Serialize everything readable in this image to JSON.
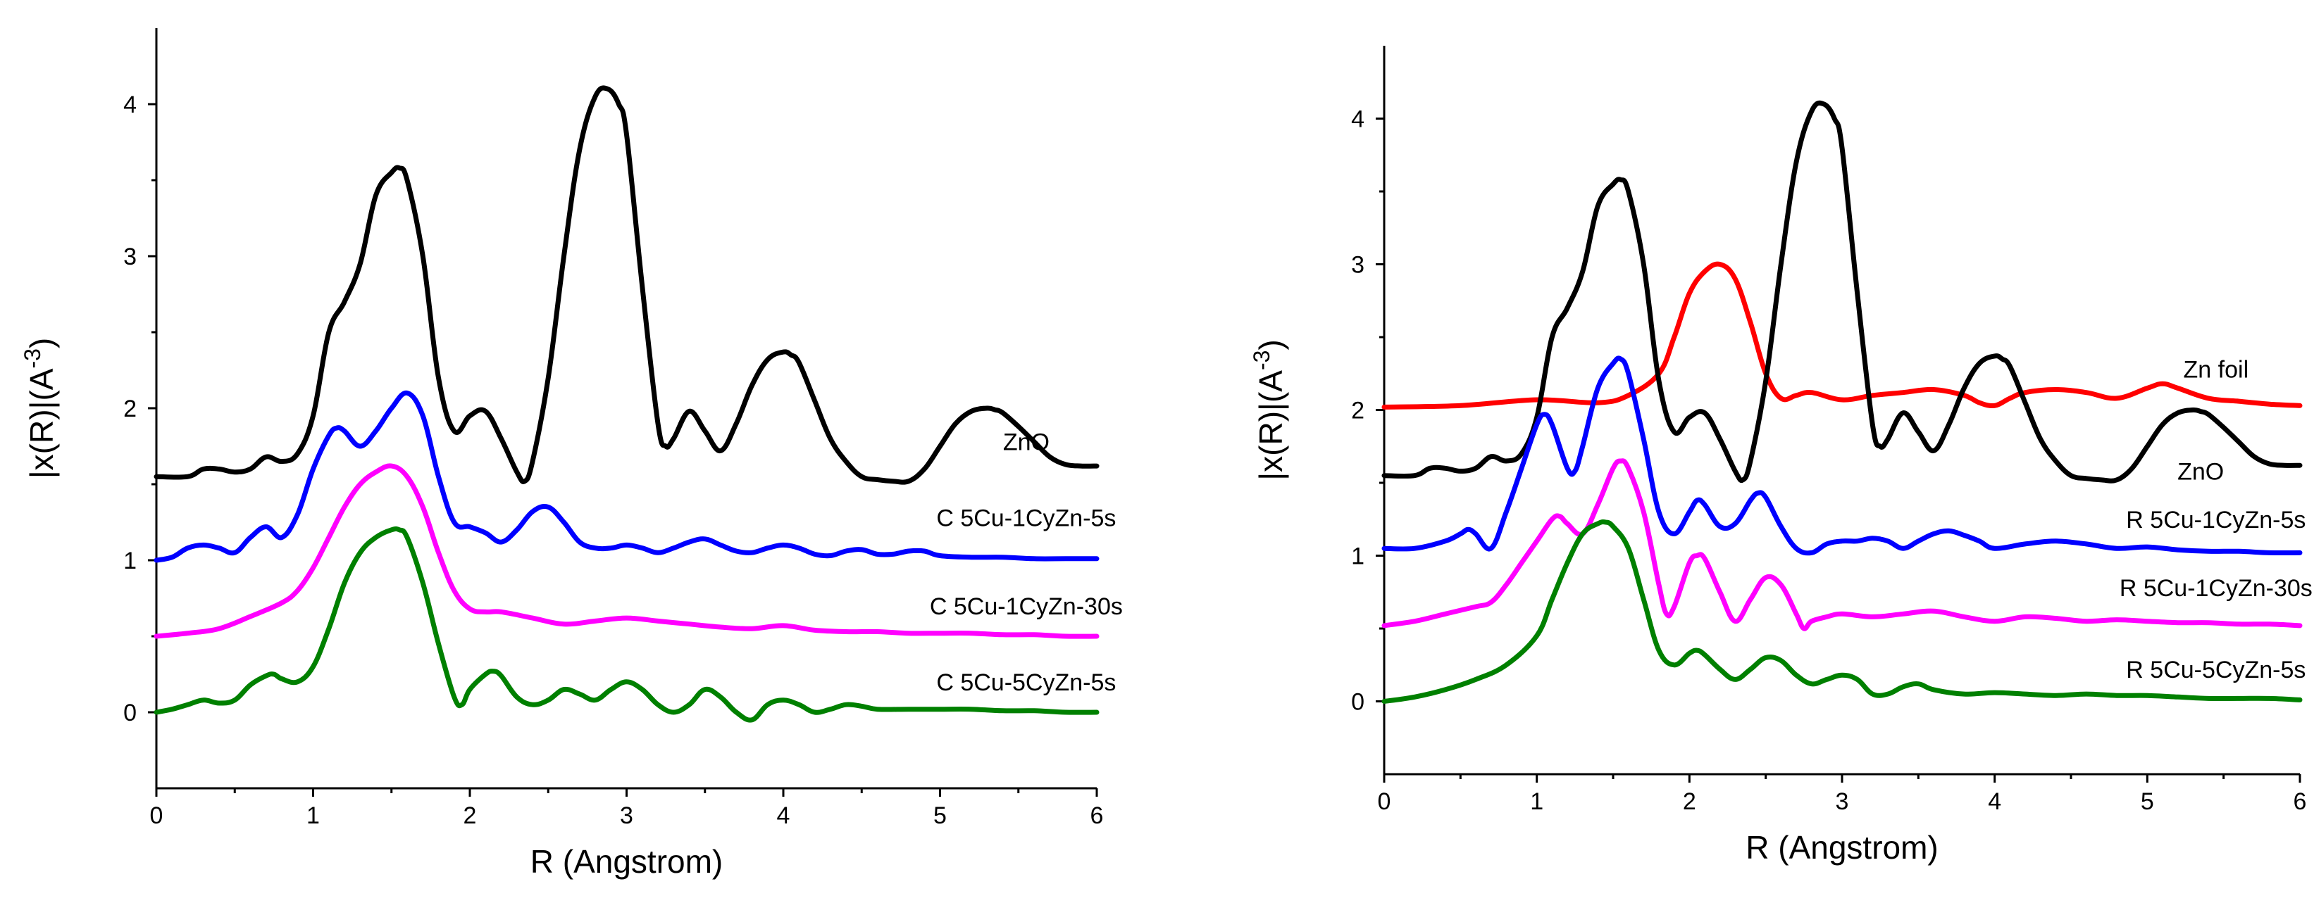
{
  "chart_data": [
    {
      "type": "line",
      "title": "",
      "xlabel": "R (Angstrom)",
      "ylabel": "|x(R)|(A^-3)",
      "ylabel_parts": {
        "main": "|x(R)|(A",
        "sup": "-3",
        "close": ")"
      },
      "xlim": [
        0,
        6
      ],
      "ylim": [
        -0.5,
        4.5
      ],
      "xticks": [
        "0",
        "1",
        "2",
        "3",
        "4",
        "5",
        "6"
      ],
      "yticks": [
        "0",
        "1",
        "2",
        "3",
        "4"
      ],
      "series": [
        {
          "name": "ZnO",
          "color": "#000000",
          "x": [
            0,
            0.2,
            0.3,
            0.4,
            0.5,
            0.6,
            0.7,
            0.8,
            0.9,
            1.0,
            1.1,
            1.2,
            1.3,
            1.4,
            1.5,
            1.55,
            1.6,
            1.7,
            1.8,
            1.9,
            2.0,
            2.1,
            2.2,
            2.3,
            2.35,
            2.4,
            2.5,
            2.6,
            2.7,
            2.8,
            2.88,
            2.95,
            3.0,
            3.1,
            3.2,
            3.25,
            3.3,
            3.4,
            3.5,
            3.6,
            3.7,
            3.8,
            3.9,
            4.0,
            4.05,
            4.1,
            4.2,
            4.3,
            4.4,
            4.5,
            4.6,
            4.7,
            4.8,
            4.9,
            5.0,
            5.1,
            5.2,
            5.3,
            5.35,
            5.4,
            5.5,
            5.6,
            5.7,
            5.8,
            5.9,
            6.0
          ],
          "y": [
            1.55,
            1.55,
            1.6,
            1.6,
            1.58,
            1.6,
            1.68,
            1.65,
            1.7,
            1.95,
            2.5,
            2.7,
            2.95,
            3.4,
            3.55,
            3.58,
            3.5,
            3.0,
            2.2,
            1.85,
            1.95,
            1.98,
            1.8,
            1.58,
            1.52,
            1.65,
            2.2,
            3.0,
            3.7,
            4.05,
            4.1,
            4.0,
            3.8,
            2.8,
            1.9,
            1.75,
            1.8,
            1.98,
            1.85,
            1.72,
            1.9,
            2.15,
            2.32,
            2.37,
            2.35,
            2.3,
            2.05,
            1.8,
            1.65,
            1.55,
            1.53,
            1.52,
            1.52,
            1.6,
            1.75,
            1.9,
            1.98,
            2.0,
            1.99,
            1.97,
            1.88,
            1.78,
            1.68,
            1.63,
            1.62,
            1.62
          ],
          "label_pos": [
            5.55,
            1.78
          ]
        },
        {
          "name": "C 5Cu-1CyZn-5s",
          "color": "#0000ff",
          "x": [
            0,
            0.1,
            0.2,
            0.3,
            0.4,
            0.5,
            0.6,
            0.7,
            0.8,
            0.9,
            1.0,
            1.1,
            1.15,
            1.2,
            1.3,
            1.4,
            1.5,
            1.6,
            1.7,
            1.8,
            1.9,
            2.0,
            2.1,
            2.2,
            2.3,
            2.4,
            2.5,
            2.6,
            2.7,
            2.8,
            2.9,
            3.0,
            3.1,
            3.2,
            3.3,
            3.4,
            3.5,
            3.6,
            3.7,
            3.8,
            3.9,
            4.0,
            4.1,
            4.2,
            4.3,
            4.4,
            4.5,
            4.6,
            4.7,
            4.8,
            4.9,
            5.0,
            5.2,
            5.4,
            5.6,
            5.8,
            6.0
          ],
          "y": [
            1.0,
            1.02,
            1.08,
            1.1,
            1.08,
            1.05,
            1.15,
            1.22,
            1.15,
            1.3,
            1.6,
            1.82,
            1.87,
            1.85,
            1.75,
            1.85,
            2.0,
            2.1,
            1.95,
            1.55,
            1.25,
            1.22,
            1.18,
            1.12,
            1.2,
            1.32,
            1.35,
            1.25,
            1.12,
            1.08,
            1.08,
            1.1,
            1.08,
            1.05,
            1.08,
            1.12,
            1.14,
            1.1,
            1.06,
            1.05,
            1.08,
            1.1,
            1.08,
            1.04,
            1.03,
            1.06,
            1.07,
            1.04,
            1.04,
            1.06,
            1.06,
            1.03,
            1.02,
            1.02,
            1.01,
            1.01,
            1.01
          ],
          "label_pos": [
            5.55,
            1.28
          ]
        },
        {
          "name": "C 5Cu-1CyZn-30s",
          "color": "#ff00ff",
          "x": [
            0,
            0.2,
            0.4,
            0.6,
            0.8,
            0.9,
            1.0,
            1.1,
            1.2,
            1.3,
            1.4,
            1.5,
            1.6,
            1.7,
            1.8,
            1.9,
            2.0,
            2.1,
            2.2,
            2.4,
            2.6,
            2.8,
            3.0,
            3.2,
            3.4,
            3.6,
            3.8,
            4.0,
            4.2,
            4.4,
            4.6,
            4.8,
            5.0,
            5.2,
            5.4,
            5.6,
            5.8,
            6.0
          ],
          "y": [
            0.5,
            0.52,
            0.55,
            0.63,
            0.72,
            0.8,
            0.95,
            1.15,
            1.35,
            1.5,
            1.58,
            1.62,
            1.55,
            1.35,
            1.05,
            0.8,
            0.68,
            0.66,
            0.66,
            0.62,
            0.58,
            0.6,
            0.62,
            0.6,
            0.58,
            0.56,
            0.55,
            0.57,
            0.54,
            0.53,
            0.53,
            0.52,
            0.52,
            0.52,
            0.51,
            0.51,
            0.5,
            0.5
          ],
          "label_pos": [
            5.55,
            0.7
          ]
        },
        {
          "name": "C 5Cu-5CyZn-5s",
          "color": "#008000",
          "x": [
            0,
            0.1,
            0.2,
            0.3,
            0.4,
            0.5,
            0.6,
            0.7,
            0.75,
            0.8,
            0.9,
            1.0,
            1.1,
            1.2,
            1.3,
            1.4,
            1.5,
            1.55,
            1.6,
            1.7,
            1.8,
            1.9,
            1.95,
            2.0,
            2.1,
            2.15,
            2.2,
            2.3,
            2.4,
            2.5,
            2.6,
            2.7,
            2.8,
            2.9,
            3.0,
            3.1,
            3.2,
            3.3,
            3.4,
            3.5,
            3.6,
            3.7,
            3.8,
            3.9,
            4.0,
            4.1,
            4.2,
            4.3,
            4.4,
            4.5,
            4.6,
            4.8,
            5.0,
            5.2,
            5.4,
            5.6,
            5.8,
            6.0
          ],
          "y": [
            0.0,
            0.02,
            0.05,
            0.08,
            0.06,
            0.08,
            0.18,
            0.24,
            0.25,
            0.22,
            0.2,
            0.3,
            0.55,
            0.85,
            1.05,
            1.15,
            1.2,
            1.2,
            1.15,
            0.85,
            0.45,
            0.1,
            0.05,
            0.15,
            0.25,
            0.27,
            0.24,
            0.1,
            0.05,
            0.08,
            0.15,
            0.12,
            0.08,
            0.15,
            0.2,
            0.15,
            0.05,
            0.0,
            0.05,
            0.15,
            0.1,
            0.0,
            -0.05,
            0.05,
            0.08,
            0.05,
            0.0,
            0.02,
            0.05,
            0.04,
            0.02,
            0.02,
            0.02,
            0.02,
            0.01,
            0.01,
            0.0,
            0.0
          ],
          "label_pos": [
            5.55,
            0.2
          ]
        }
      ]
    },
    {
      "type": "line",
      "title": "",
      "xlabel": "R (Angstrom)",
      "ylabel": "|x(R)|(A^-3)",
      "ylabel_parts": {
        "main": "|x(R)|(A",
        "sup": "-3",
        "close": ")"
      },
      "xlim": [
        0,
        6
      ],
      "ylim": [
        -0.5,
        4.5
      ],
      "xticks": [
        "0",
        "1",
        "2",
        "3",
        "4",
        "5",
        "6"
      ],
      "yticks": [
        "0",
        "1",
        "2",
        "3",
        "4"
      ],
      "series": [
        {
          "name": "Zn foil",
          "color": "#ff0000",
          "x": [
            0,
            0.5,
            1.0,
            1.4,
            1.6,
            1.8,
            1.9,
            2.0,
            2.1,
            2.2,
            2.3,
            2.4,
            2.5,
            2.6,
            2.7,
            2.8,
            3.0,
            3.2,
            3.4,
            3.6,
            3.8,
            3.9,
            4.0,
            4.1,
            4.2,
            4.4,
            4.6,
            4.8,
            5.0,
            5.1,
            5.2,
            5.4,
            5.6,
            5.8,
            6.0
          ],
          "y": [
            2.02,
            2.03,
            2.07,
            2.05,
            2.1,
            2.25,
            2.5,
            2.8,
            2.95,
            3.0,
            2.9,
            2.6,
            2.25,
            2.08,
            2.1,
            2.12,
            2.07,
            2.1,
            2.12,
            2.14,
            2.1,
            2.05,
            2.03,
            2.08,
            2.12,
            2.14,
            2.12,
            2.08,
            2.15,
            2.18,
            2.15,
            2.08,
            2.06,
            2.04,
            2.03
          ],
          "label_pos": [
            5.45,
            2.28
          ]
        },
        {
          "name": "ZnO",
          "color": "#000000",
          "x": [
            0,
            0.2,
            0.3,
            0.4,
            0.5,
            0.6,
            0.7,
            0.8,
            0.9,
            1.0,
            1.1,
            1.2,
            1.3,
            1.4,
            1.5,
            1.55,
            1.6,
            1.7,
            1.8,
            1.9,
            2.0,
            2.1,
            2.2,
            2.3,
            2.35,
            2.4,
            2.5,
            2.6,
            2.7,
            2.8,
            2.88,
            2.95,
            3.0,
            3.1,
            3.2,
            3.25,
            3.3,
            3.4,
            3.5,
            3.6,
            3.7,
            3.8,
            3.9,
            4.0,
            4.05,
            4.1,
            4.2,
            4.3,
            4.4,
            4.5,
            4.6,
            4.7,
            4.8,
            4.9,
            5.0,
            5.1,
            5.2,
            5.3,
            5.35,
            5.4,
            5.5,
            5.6,
            5.7,
            5.8,
            5.9,
            6.0
          ],
          "y": [
            1.55,
            1.55,
            1.6,
            1.6,
            1.58,
            1.6,
            1.68,
            1.65,
            1.7,
            1.95,
            2.5,
            2.7,
            2.95,
            3.4,
            3.55,
            3.58,
            3.5,
            3.0,
            2.2,
            1.85,
            1.95,
            1.98,
            1.8,
            1.58,
            1.52,
            1.65,
            2.2,
            3.0,
            3.7,
            4.05,
            4.1,
            4.0,
            3.8,
            2.8,
            1.9,
            1.75,
            1.8,
            1.98,
            1.85,
            1.72,
            1.9,
            2.15,
            2.32,
            2.37,
            2.35,
            2.3,
            2.05,
            1.8,
            1.65,
            1.55,
            1.53,
            1.52,
            1.52,
            1.6,
            1.75,
            1.9,
            1.98,
            2.0,
            1.99,
            1.97,
            1.88,
            1.78,
            1.68,
            1.63,
            1.62,
            1.62
          ],
          "label_pos": [
            5.35,
            1.58
          ]
        },
        {
          "name": "R 5Cu-1CyZn-5s",
          "color": "#0000ff",
          "x": [
            0,
            0.2,
            0.4,
            0.5,
            0.55,
            0.6,
            0.7,
            0.8,
            0.9,
            1.0,
            1.05,
            1.1,
            1.2,
            1.25,
            1.3,
            1.4,
            1.5,
            1.55,
            1.6,
            1.7,
            1.8,
            1.9,
            2.0,
            2.05,
            2.1,
            2.2,
            2.3,
            2.4,
            2.45,
            2.5,
            2.6,
            2.7,
            2.8,
            2.9,
            3.0,
            3.1,
            3.2,
            3.3,
            3.4,
            3.5,
            3.6,
            3.7,
            3.8,
            3.9,
            4.0,
            4.2,
            4.4,
            4.6,
            4.8,
            5.0,
            5.2,
            5.4,
            5.6,
            5.8,
            6.0
          ],
          "y": [
            1.05,
            1.05,
            1.1,
            1.15,
            1.18,
            1.15,
            1.05,
            1.3,
            1.6,
            1.9,
            1.97,
            1.9,
            1.6,
            1.58,
            1.75,
            2.15,
            2.32,
            2.35,
            2.25,
            1.8,
            1.3,
            1.15,
            1.3,
            1.38,
            1.35,
            1.2,
            1.22,
            1.38,
            1.43,
            1.4,
            1.2,
            1.05,
            1.02,
            1.08,
            1.1,
            1.1,
            1.12,
            1.1,
            1.05,
            1.1,
            1.15,
            1.17,
            1.14,
            1.1,
            1.05,
            1.08,
            1.1,
            1.08,
            1.05,
            1.06,
            1.04,
            1.03,
            1.03,
            1.02,
            1.02
          ],
          "label_pos": [
            5.45,
            1.25
          ]
        },
        {
          "name": "R 5Cu-1CyZn-30s",
          "color": "#ff00ff",
          "x": [
            0,
            0.2,
            0.4,
            0.6,
            0.7,
            0.8,
            0.9,
            1.0,
            1.1,
            1.15,
            1.2,
            1.3,
            1.4,
            1.5,
            1.55,
            1.6,
            1.7,
            1.8,
            1.85,
            1.9,
            2.0,
            2.05,
            2.1,
            2.2,
            2.3,
            2.4,
            2.5,
            2.6,
            2.7,
            2.75,
            2.8,
            2.9,
            3.0,
            3.2,
            3.4,
            3.6,
            3.8,
            4.0,
            4.2,
            4.4,
            4.6,
            4.8,
            5.0,
            5.2,
            5.4,
            5.6,
            5.8,
            6.0
          ],
          "y": [
            0.52,
            0.55,
            0.6,
            0.65,
            0.68,
            0.8,
            0.95,
            1.1,
            1.25,
            1.27,
            1.22,
            1.15,
            1.35,
            1.6,
            1.65,
            1.6,
            1.3,
            0.8,
            0.6,
            0.65,
            0.95,
            1.0,
            0.98,
            0.75,
            0.55,
            0.7,
            0.85,
            0.8,
            0.6,
            0.5,
            0.55,
            0.58,
            0.6,
            0.58,
            0.6,
            0.62,
            0.58,
            0.55,
            0.58,
            0.57,
            0.55,
            0.56,
            0.55,
            0.54,
            0.54,
            0.53,
            0.53,
            0.52
          ],
          "label_pos": [
            5.45,
            0.78
          ]
        },
        {
          "name": "R 5Cu-5CyZn-5s",
          "color": "#008000",
          "x": [
            0,
            0.2,
            0.4,
            0.6,
            0.8,
            1.0,
            1.1,
            1.2,
            1.3,
            1.4,
            1.45,
            1.5,
            1.6,
            1.7,
            1.8,
            1.9,
            2.0,
            2.05,
            2.1,
            2.2,
            2.3,
            2.4,
            2.5,
            2.6,
            2.7,
            2.8,
            2.9,
            3.0,
            3.1,
            3.2,
            3.3,
            3.4,
            3.5,
            3.6,
            3.8,
            4.0,
            4.2,
            4.4,
            4.6,
            4.8,
            5.0,
            5.2,
            5.4,
            5.6,
            5.8,
            6.0
          ],
          "y": [
            0.0,
            0.03,
            0.08,
            0.15,
            0.25,
            0.45,
            0.7,
            0.95,
            1.15,
            1.22,
            1.23,
            1.2,
            1.05,
            0.7,
            0.35,
            0.25,
            0.33,
            0.35,
            0.32,
            0.22,
            0.15,
            0.22,
            0.3,
            0.28,
            0.18,
            0.12,
            0.15,
            0.18,
            0.15,
            0.05,
            0.05,
            0.1,
            0.12,
            0.08,
            0.05,
            0.06,
            0.05,
            0.04,
            0.05,
            0.04,
            0.04,
            0.03,
            0.02,
            0.02,
            0.02,
            0.01
          ],
          "label_pos": [
            5.45,
            0.22
          ]
        }
      ]
    }
  ]
}
